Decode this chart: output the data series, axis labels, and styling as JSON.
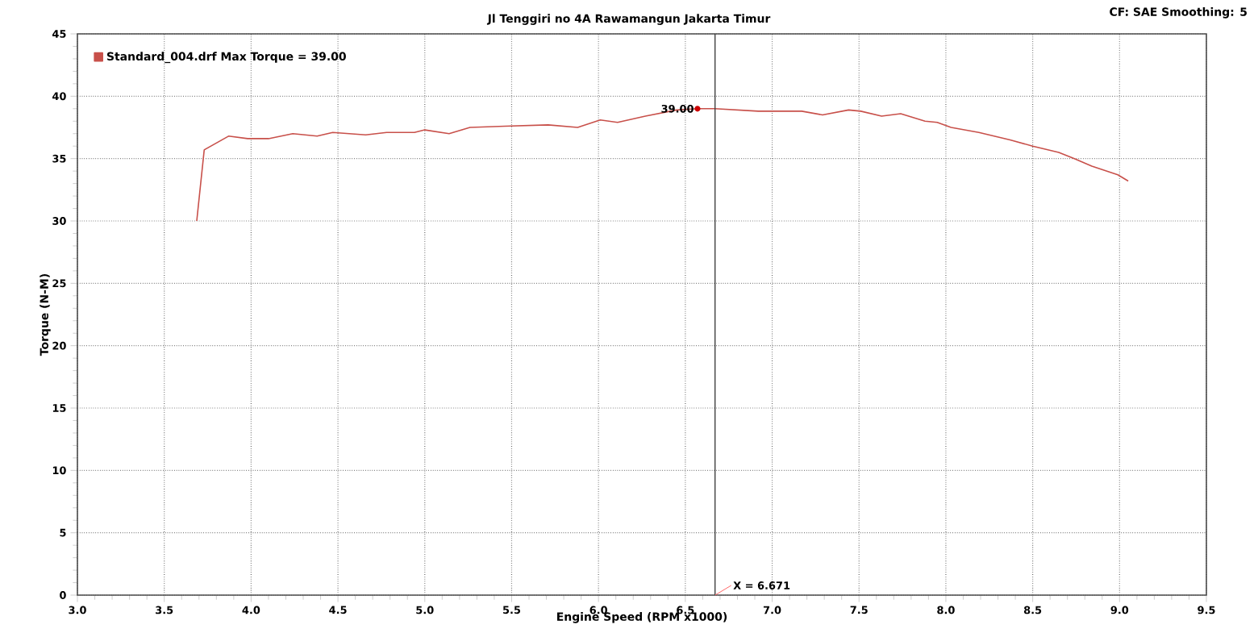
{
  "chart_data": {
    "type": "line",
    "title": "Jl Tenggiri no 4A Rawamangun Jakarta Timur",
    "xlabel": "Engine Speed (RPM x1000)",
    "ylabel": "Torque (N-M)",
    "series": [
      {
        "name": "Standard_004.drf Max Torque = 39.00",
        "color": "#c8504a",
        "x": [
          3.687,
          3.73,
          3.87,
          3.98,
          4.1,
          4.24,
          4.38,
          4.47,
          4.66,
          4.78,
          4.94,
          5.0,
          5.14,
          5.26,
          5.46,
          5.71,
          5.88,
          6.01,
          6.11,
          6.27,
          6.45,
          6.57,
          6.67,
          6.92,
          7.17,
          7.29,
          7.44,
          7.51,
          7.63,
          7.74,
          7.88,
          7.95,
          8.03,
          8.19,
          8.37,
          8.5,
          8.65,
          8.74,
          8.84,
          8.99,
          9.05
        ],
        "values": [
          30.0,
          35.7,
          36.8,
          36.6,
          36.6,
          37.0,
          36.8,
          37.1,
          36.9,
          37.1,
          37.1,
          37.3,
          37.0,
          37.5,
          37.6,
          37.7,
          37.5,
          38.1,
          37.9,
          38.4,
          38.9,
          39.0,
          39.0,
          38.8,
          38.8,
          38.5,
          38.9,
          38.8,
          38.4,
          38.6,
          38.0,
          37.9,
          37.5,
          37.1,
          36.5,
          36.0,
          35.5,
          35.0,
          34.4,
          33.7,
          33.2
        ]
      }
    ],
    "xlim": [
      3.0,
      9.5
    ],
    "ylim": [
      0,
      45
    ],
    "xticks": [
      {
        "value": 3,
        "label": "3.0"
      },
      3.5,
      {
        "value": 4,
        "label": "4.0"
      },
      4.5,
      {
        "value": 5,
        "label": "5.0"
      },
      5.5,
      {
        "value": 6,
        "label": "6.0"
      },
      6.5,
      {
        "value": 7,
        "label": "7.0"
      },
      7.5,
      {
        "value": 8,
        "label": "8.0"
      },
      8.5,
      {
        "value": 9,
        "label": "9.0"
      },
      9.5
    ],
    "yticks": [
      0,
      5,
      10,
      15,
      20,
      25,
      30,
      35,
      40,
      45
    ],
    "grid": true,
    "legend": "top left",
    "marker": "none",
    "line_style": "solid",
    "ref_lines": [
      {
        "axis": "x",
        "value": 6.671,
        "label": "X = 6.671",
        "color": "#404040"
      }
    ],
    "annotations": [
      {
        "text": "39.00",
        "x": 6.57,
        "y": 39.0
      },
      "CF: SAE  Smoothing: 5"
    ]
  }
}
